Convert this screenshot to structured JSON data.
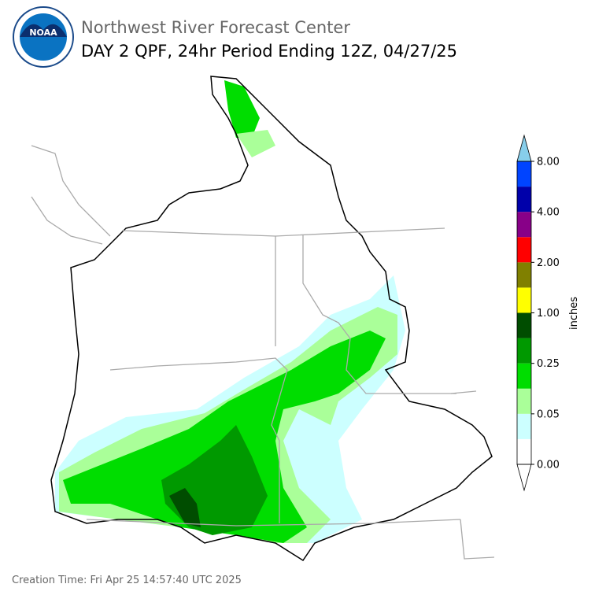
{
  "header": {
    "title": "Northwest River Forecast Center",
    "subtitle": "DAY 2 QPF, 24hr Period Ending 12Z, 04/27/25"
  },
  "colorbar": {
    "label": "inches",
    "ticks": [
      {
        "value": 0,
        "label": "0.00"
      },
      {
        "value": 0.05,
        "label": "0.05"
      },
      {
        "value": 0.25,
        "label": "0.25"
      },
      {
        "value": 1,
        "label": "1.00"
      },
      {
        "value": 2,
        "label": "2.00"
      },
      {
        "value": 4,
        "label": "4.00"
      },
      {
        "value": 8,
        "label": "8.00"
      }
    ],
    "colors": [
      "#ffffff",
      "#ccffff",
      "#aaff99",
      "#00dd00",
      "#009900",
      "#004d00",
      "#ffff00",
      "#808000",
      "#ff0000",
      "#880088",
      "#0000aa",
      "#0044ff"
    ],
    "over_color": "#87ceeb"
  },
  "footer": {
    "creation_time": "Creation Time: Fri Apr 25 14:57:40 UTC 2025"
  }
}
